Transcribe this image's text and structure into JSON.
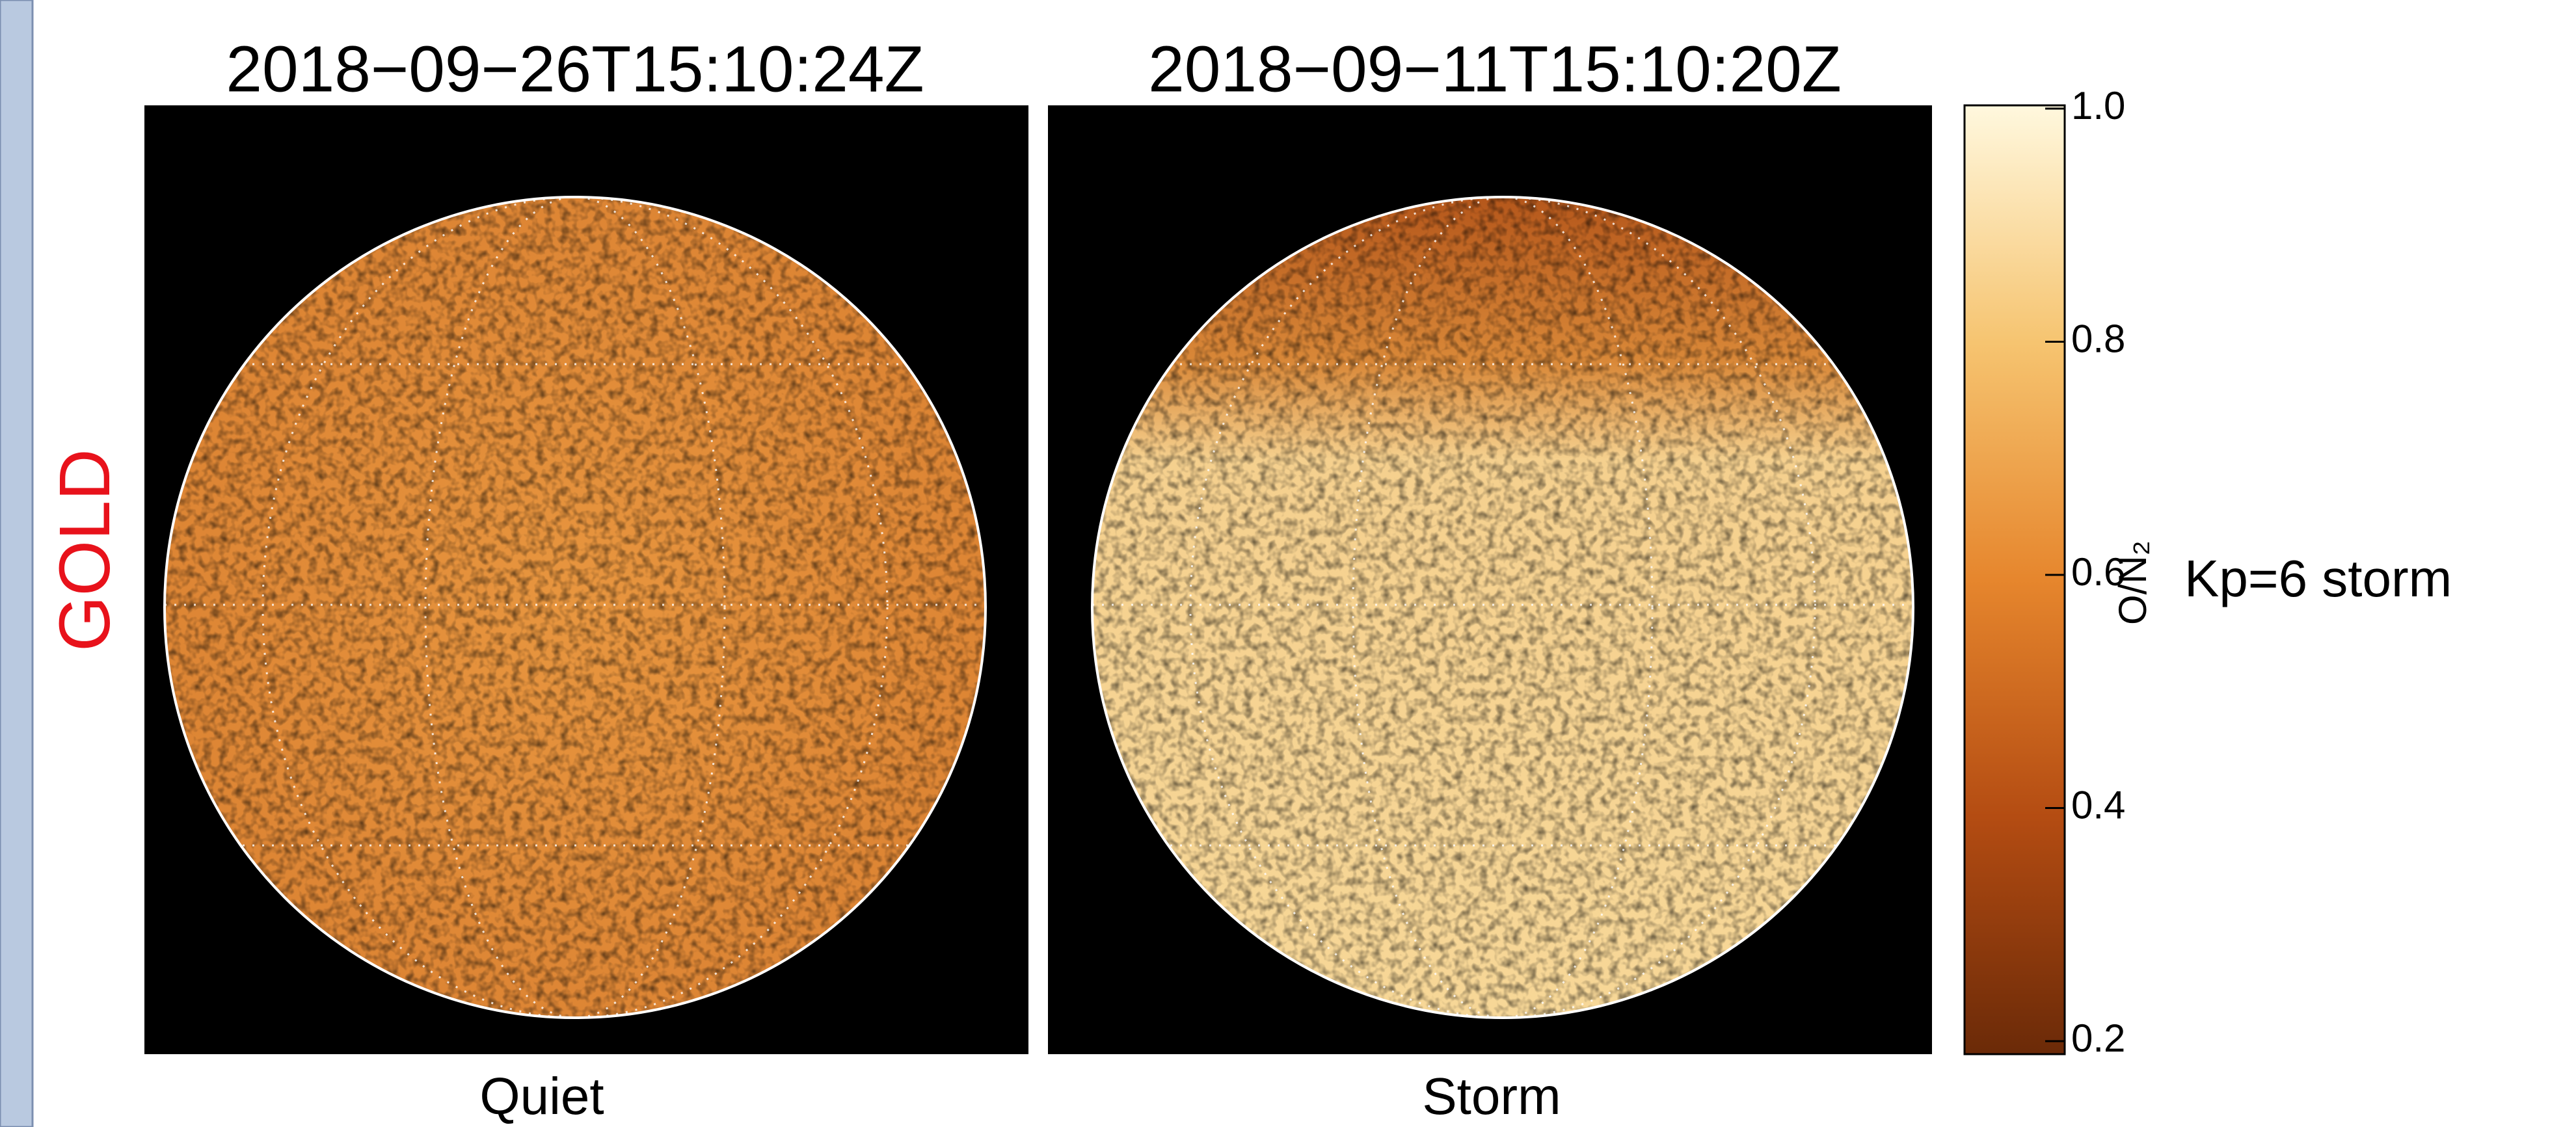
{
  "row_label": "GOLD",
  "panels": [
    {
      "title": "2018−09−26T15:10:24Z",
      "caption": "Quiet"
    },
    {
      "title": "2018−09−11T15:10:20Z",
      "caption": "Storm"
    }
  ],
  "colorbar": {
    "label": "O/N₂",
    "lim": [
      0.2,
      1.0
    ],
    "ticks": [
      0.2,
      0.4,
      0.6,
      0.8,
      {
        "value": 1,
        "label": "1.0"
      }
    ]
  },
  "annotation": "Kp=6 storm"
}
